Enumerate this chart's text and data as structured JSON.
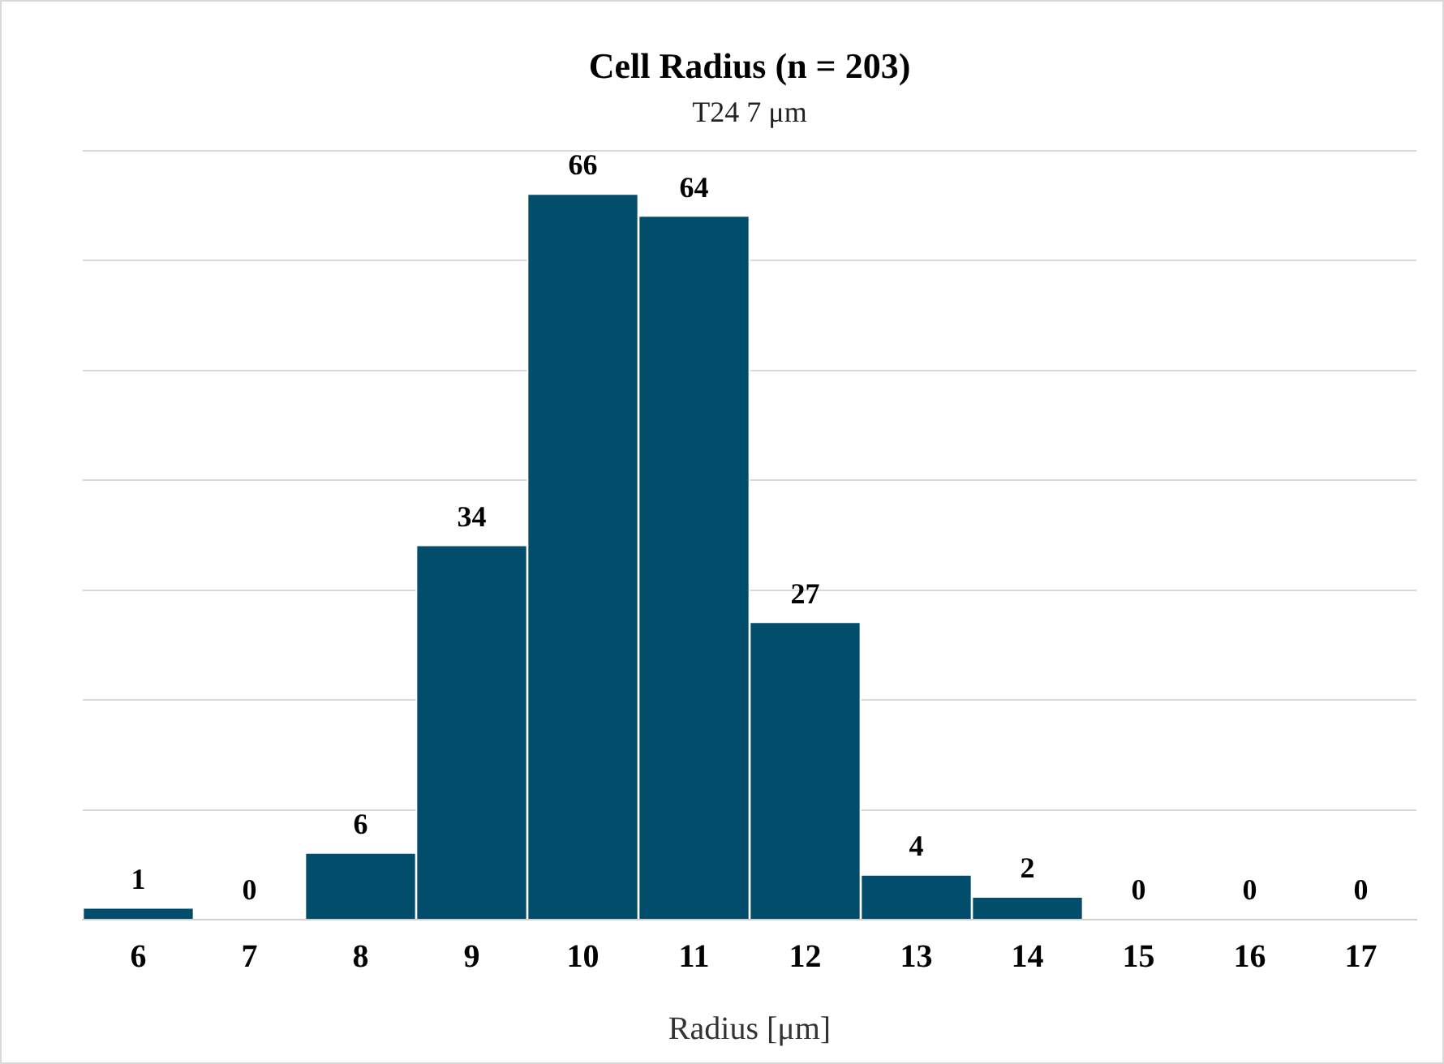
{
  "chart_data": {
    "type": "bar",
    "title": "Cell Radius (n = 203)",
    "subtitle": "T24 7 μm",
    "xlabel": "Radius [μm]",
    "categories": [
      "6",
      "7",
      "8",
      "9",
      "10",
      "11",
      "12",
      "13",
      "14",
      "15",
      "16",
      "17"
    ],
    "values": [
      1,
      0,
      6,
      34,
      66,
      64,
      27,
      4,
      2,
      0,
      0,
      0
    ],
    "color": "#024d6c",
    "ylim": [
      0,
      70
    ],
    "yticks": [
      {
        "value": 0,
        "label": null
      },
      {
        "value": 10,
        "label": null
      },
      {
        "value": 20,
        "label": null
      },
      {
        "value": 30,
        "label": null
      },
      {
        "value": 40,
        "label": null
      },
      {
        "value": 50,
        "label": null
      },
      {
        "value": 60,
        "label": null
      },
      {
        "value": 70,
        "label": null
      }
    ],
    "grid": "y",
    "tick_labels": "x",
    "data_labels": true
  }
}
